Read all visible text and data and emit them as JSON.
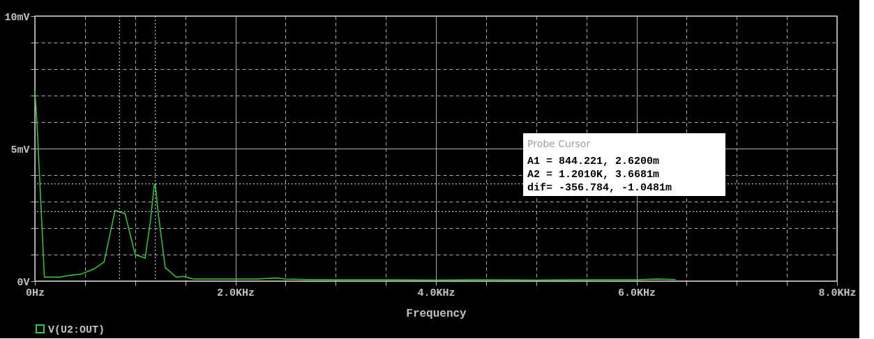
{
  "chart_data": {
    "type": "line",
    "xlabel": "Frequency",
    "x": [
      0,
      0.02,
      0.095,
      0.25,
      0.37,
      0.46,
      0.59,
      0.69,
      0.8,
      0.844,
      0.9,
      1.0,
      1.1,
      1.15,
      1.19,
      1.201,
      1.23,
      1.3,
      1.41,
      1.48,
      1.58,
      2.22,
      2.4,
      2.5,
      2.7,
      3.0,
      3.5,
      4.0,
      4.5,
      5.0,
      5.5,
      6.0,
      6.2,
      6.39
    ],
    "series": [
      {
        "name": "V(U2:OUT)",
        "color": "#33cc33",
        "values": [
          7.2,
          6.05,
          0.15,
          0.15,
          0.23,
          0.26,
          0.46,
          0.72,
          2.67,
          2.62,
          2.54,
          1.0,
          0.87,
          2.2,
          3.6,
          3.67,
          2.56,
          0.51,
          0.15,
          0.18,
          0.08,
          0.08,
          0.12,
          0.08,
          0.06,
          0.05,
          0.05,
          0.04,
          0.05,
          0.04,
          0.05,
          0.05,
          0.08,
          0.06
        ]
      }
    ],
    "xlim": [
      0,
      8
    ],
    "ylim": [
      0,
      10
    ],
    "xticks": [
      {
        "value": 0,
        "label": "0Hz"
      },
      {
        "value": 0.5,
        "label": null
      },
      {
        "value": 1,
        "label": null
      },
      {
        "value": 1.5,
        "label": null
      },
      {
        "value": 2,
        "label": "2.0KHz"
      },
      {
        "value": 2.5,
        "label": null
      },
      {
        "value": 3,
        "label": null
      },
      {
        "value": 3.5,
        "label": null
      },
      {
        "value": 4,
        "label": "4.0KHz"
      },
      {
        "value": 4.5,
        "label": null
      },
      {
        "value": 5,
        "label": null
      },
      {
        "value": 5.5,
        "label": null
      },
      {
        "value": 6,
        "label": "6.0KHz"
      },
      {
        "value": 6.5,
        "label": null
      },
      {
        "value": 7,
        "label": null
      },
      {
        "value": 7.5,
        "label": null
      },
      {
        "value": 8,
        "label": "8.0KHz"
      }
    ],
    "yticks": [
      {
        "value": 0,
        "label": "0V"
      },
      {
        "value": 1,
        "label": null
      },
      {
        "value": 2,
        "label": null
      },
      {
        "value": 3,
        "label": null
      },
      {
        "value": 4,
        "label": null
      },
      {
        "value": 5,
        "label": "5mV"
      },
      {
        "value": 6,
        "label": null
      },
      {
        "value": 7,
        "label": null
      },
      {
        "value": 8,
        "label": null
      },
      {
        "value": 9,
        "label": null
      },
      {
        "value": 10,
        "label": "10mV"
      }
    ],
    "ref_lines": [
      {
        "axis": "x",
        "value": 0.844221,
        "color": "#c0c0c0",
        "line_style": "dotted"
      },
      {
        "axis": "x",
        "value": 1.201,
        "color": "#c0c0c0",
        "line_style": "dotted"
      },
      {
        "axis": "y",
        "value": 2.62,
        "color": "#c0c0c0",
        "line_style": "dotted"
      },
      {
        "axis": "y",
        "value": 3.6681,
        "color": "#c0c0c0",
        "line_style": "dotted"
      }
    ],
    "annotations": [
      "Probe Cursor",
      "A1 =  844.221,   2.6200m",
      "A2 =  1.2010K,   3.6681m",
      "dif= -356.784,  -1.0481m"
    ],
    "grid": true,
    "legend": "bottom left",
    "line_style": "solid"
  }
}
